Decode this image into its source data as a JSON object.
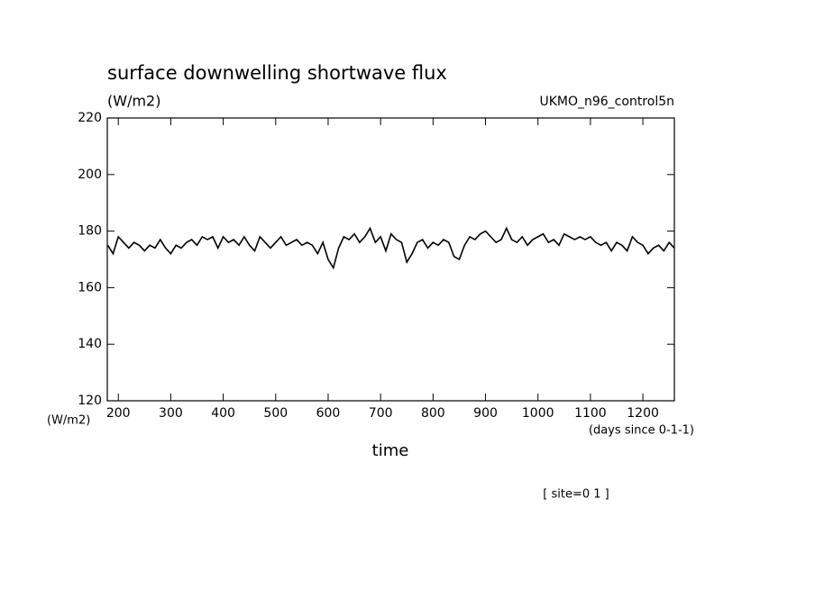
{
  "chart_data": {
    "type": "line",
    "title": "surface downwelling shortwave flux",
    "subtitle": "(W/m2)",
    "annotation": "UKMO_n96_control5n",
    "y_axis_label": "(W/m2)",
    "x_axis_unit": "(days since 0-1-1)",
    "x_axis_label": "time",
    "footnote": "[ site=0 1 ]",
    "xlim": [
      179,
      1260
    ],
    "ylim": [
      120,
      220
    ],
    "xticks": [
      200,
      300,
      400,
      500,
      600,
      700,
      800,
      900,
      1000,
      1100,
      1200
    ],
    "yticks": [
      120,
      140,
      160,
      180,
      200,
      220
    ],
    "x": [
      180,
      190,
      200,
      210,
      220,
      230,
      240,
      250,
      260,
      270,
      280,
      290,
      300,
      310,
      320,
      330,
      340,
      350,
      360,
      370,
      380,
      390,
      400,
      410,
      420,
      430,
      440,
      450,
      460,
      470,
      480,
      490,
      500,
      510,
      520,
      530,
      540,
      550,
      560,
      570,
      580,
      590,
      600,
      610,
      620,
      630,
      640,
      650,
      660,
      670,
      680,
      690,
      700,
      710,
      720,
      730,
      740,
      750,
      760,
      770,
      780,
      790,
      800,
      810,
      820,
      830,
      840,
      850,
      860,
      870,
      880,
      890,
      900,
      910,
      920,
      930,
      940,
      950,
      960,
      970,
      980,
      990,
      1000,
      1010,
      1020,
      1030,
      1040,
      1050,
      1060,
      1070,
      1080,
      1090,
      1100,
      1110,
      1120,
      1130,
      1140,
      1150,
      1160,
      1170,
      1180,
      1190,
      1200,
      1210,
      1220,
      1230,
      1240,
      1250,
      1260
    ],
    "series": [
      {
        "color": "#000000",
        "values": [
          175,
          172,
          178,
          176,
          174,
          176,
          175,
          173,
          175,
          174,
          177,
          174,
          172,
          175,
          174,
          176,
          177,
          175,
          178,
          177,
          178,
          174,
          178,
          176,
          177,
          175,
          178,
          175,
          173,
          178,
          176,
          174,
          176,
          178,
          175,
          176,
          177,
          175,
          176,
          175,
          172,
          176,
          170,
          167,
          174,
          178,
          177,
          179,
          176,
          178,
          181,
          176,
          178,
          173,
          179,
          177,
          176,
          169,
          172,
          176,
          177,
          174,
          176,
          175,
          177,
          176,
          171,
          170,
          175,
          178,
          177,
          179,
          180,
          178,
          176,
          177,
          181,
          177,
          176,
          178,
          175,
          177,
          178,
          179,
          176,
          177,
          175,
          179,
          178,
          177,
          178,
          177,
          178,
          176,
          175,
          176,
          173,
          176,
          175,
          173,
          178,
          176,
          175,
          172,
          174,
          175,
          173,
          176,
          174
        ]
      }
    ]
  }
}
